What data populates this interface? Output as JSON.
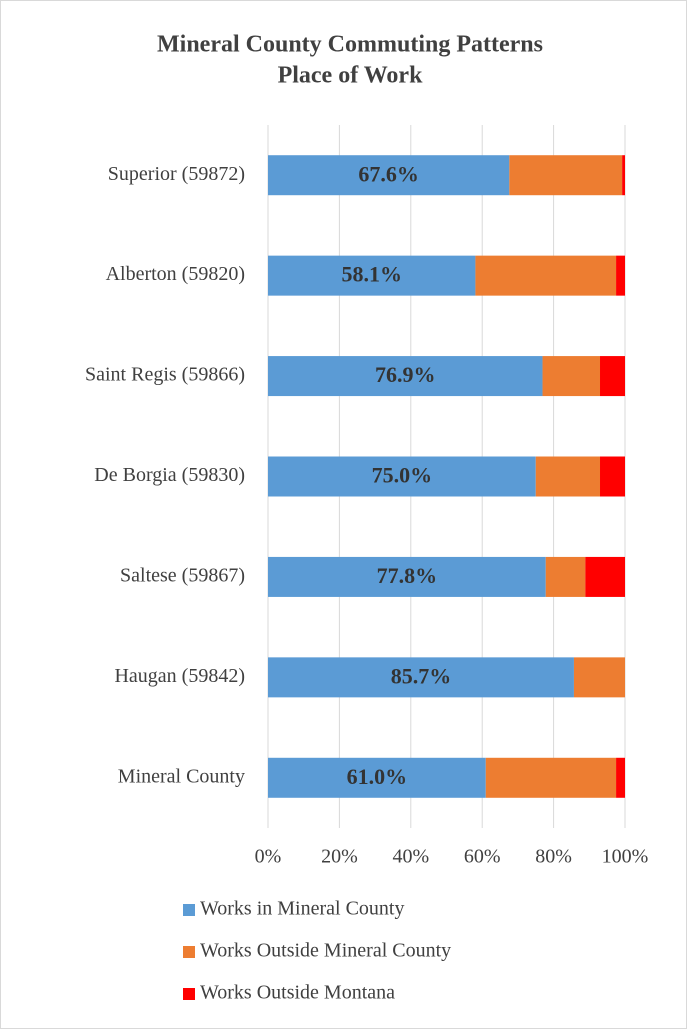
{
  "chart_data": {
    "type": "stacked_barh",
    "title": "Mineral County Commuting Patterns",
    "subtitle": "Place of Work",
    "categories": [
      "Superior (59872)",
      "Alberton (59820)",
      "Saint Regis (59866)",
      "De Borgia (59830)",
      "Saltese (59867)",
      "Haugan (59842)",
      "Mineral County"
    ],
    "series": [
      {
        "name": "Works in Mineral County",
        "color": "#5b9bd5",
        "values": [
          67.6,
          58.1,
          76.9,
          75.0,
          77.8,
          85.7,
          61.0
        ],
        "value_labels": [
          "67.6%",
          "58.1%",
          "76.9%",
          "75.0%",
          "77.8%",
          "85.7%",
          "61.0%"
        ]
      },
      {
        "name": "Works Outside Mineral County",
        "color": "#ed7d31",
        "values": [
          31.6,
          39.4,
          16.1,
          18.0,
          11.1,
          14.3,
          36.5
        ]
      },
      {
        "name": "Works Outside Montana",
        "color": "#ff0000",
        "values": [
          0.8,
          2.5,
          7.0,
          7.0,
          11.1,
          0,
          2.5
        ]
      }
    ],
    "xlim": [
      0,
      100
    ],
    "xticks": [
      {
        "value": 0,
        "label": "0%"
      },
      {
        "value": 20,
        "label": "20%"
      },
      {
        "value": 40,
        "label": "40%"
      },
      {
        "value": 60,
        "label": "60%"
      },
      {
        "value": 80,
        "label": "80%"
      },
      {
        "value": 100,
        "label": "100%"
      }
    ],
    "grid": true,
    "legend": "bottom"
  }
}
